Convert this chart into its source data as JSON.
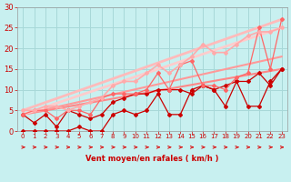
{
  "bg_color": "#c8f0f0",
  "grid_color": "#a8d8d8",
  "xlabel": "Vent moyen/en rafales ( km/h )",
  "xlabel_color": "#cc0000",
  "tick_color": "#cc0000",
  "xlim": [
    -0.5,
    23.5
  ],
  "ylim": [
    0,
    30
  ],
  "xticks": [
    0,
    1,
    2,
    3,
    4,
    5,
    6,
    7,
    8,
    9,
    10,
    11,
    12,
    13,
    14,
    15,
    16,
    17,
    18,
    19,
    20,
    21,
    22,
    23
  ],
  "yticks": [
    0,
    5,
    10,
    15,
    20,
    25,
    30
  ],
  "lines": [
    {
      "x": [
        0,
        1,
        2,
        3,
        4,
        5,
        6,
        7,
        8,
        9,
        10,
        11,
        12,
        13,
        14,
        15,
        16,
        17,
        18,
        19,
        20,
        21,
        22,
        23
      ],
      "y": [
        0,
        0,
        0,
        0,
        0,
        1,
        0,
        0,
        4,
        5,
        4,
        5,
        9,
        4,
        4,
        10,
        11,
        10,
        6,
        12,
        6,
        6,
        12,
        15
      ],
      "color": "#cc0000",
      "lw": 0.9,
      "marker": "D",
      "ms": 2.0
    },
    {
      "x": [
        0,
        1,
        2,
        3,
        4,
        5,
        6,
        7,
        8,
        9,
        10,
        11,
        12,
        13,
        14,
        15,
        16,
        17,
        18,
        19,
        20,
        21,
        22,
        23
      ],
      "y": [
        4,
        2,
        4,
        1,
        5,
        4,
        3,
        4,
        7,
        8,
        9,
        9,
        10,
        10,
        10,
        9,
        11,
        10,
        11,
        12,
        12,
        14,
        11,
        15
      ],
      "color": "#cc0000",
      "lw": 0.9,
      "marker": "D",
      "ms": 2.0
    },
    {
      "x": [
        0,
        1,
        2,
        3,
        4,
        5,
        6,
        7,
        8,
        9,
        10,
        11,
        12,
        13,
        14,
        15,
        16,
        17,
        18,
        19,
        20,
        21,
        22,
        23
      ],
      "y": [
        4,
        5,
        5,
        3,
        5,
        5,
        4,
        8,
        9,
        9,
        9,
        10,
        14,
        10,
        16,
        17,
        11,
        11,
        10,
        13,
        14,
        25,
        15,
        27
      ],
      "color": "#ff6666",
      "lw": 0.9,
      "marker": "D",
      "ms": 2.0
    },
    {
      "x": [
        0,
        1,
        2,
        3,
        4,
        5,
        6,
        7,
        8,
        9,
        10,
        11,
        12,
        13,
        14,
        15,
        16,
        17,
        18,
        19,
        20,
        21,
        22,
        23
      ],
      "y": [
        5,
        5,
        6,
        6,
        5,
        6,
        7,
        8,
        11,
        12,
        12,
        14,
        16,
        14,
        16,
        18,
        21,
        19,
        19,
        21,
        23,
        24,
        24,
        25
      ],
      "color": "#ffaaaa",
      "lw": 1.2,
      "marker": "D",
      "ms": 2.0
    },
    {
      "x": [
        0,
        23
      ],
      "y": [
        4,
        15
      ],
      "color": "#ff8888",
      "lw": 1.5,
      "marker": null,
      "ms": 0
    },
    {
      "x": [
        0,
        23
      ],
      "y": [
        4,
        18
      ],
      "color": "#ff9999",
      "lw": 1.5,
      "marker": null,
      "ms": 0
    },
    {
      "x": [
        0,
        23
      ],
      "y": [
        5,
        27
      ],
      "color": "#ffbbbb",
      "lw": 2.0,
      "marker": null,
      "ms": 0
    },
    {
      "x": [
        0,
        23
      ],
      "y": [
        4,
        25
      ],
      "color": "#ffcccc",
      "lw": 2.0,
      "marker": null,
      "ms": 0
    }
  ]
}
